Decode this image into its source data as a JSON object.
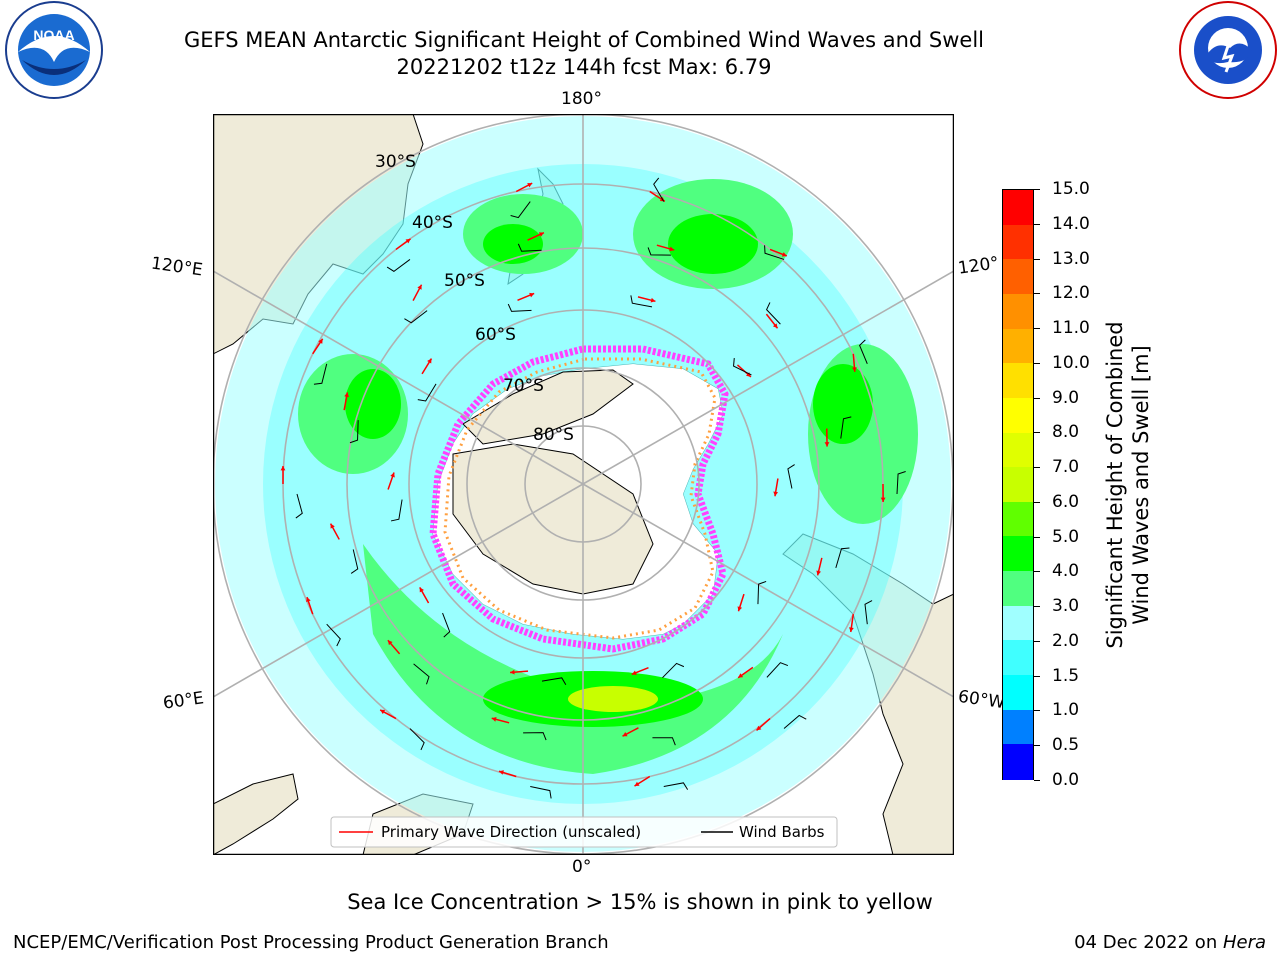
{
  "header": {
    "title_line1": "GEFS MEAN Antarctic Significant Height of Combined Wind Waves and Swell",
    "title_line2": "20221202 t12z 144h fcst   Max: 6.79"
  },
  "logos": {
    "left": {
      "icon": "noaa-logo",
      "text": "NOAA",
      "ring_text": "NATIONAL OCEANIC AND ATMOSPHERIC ADMINISTRATION · U.S. DEPARTMENT OF COMMERCE"
    },
    "right": {
      "icon": "nws-logo",
      "ring_text": "NATIONAL WEATHER SERVICE"
    }
  },
  "map": {
    "projection": "south-polar-stereographic",
    "longitude_labels": {
      "top": "180°",
      "bottom": "0°",
      "left_upper": "120°E",
      "left_lower": "60°E",
      "right_upper": "120°",
      "right_lower": "60°W"
    },
    "latitude_labels": [
      "30°S",
      "40°S",
      "50°S",
      "60°S",
      "70°S",
      "80°S"
    ],
    "colors": {
      "land": "#efebd9",
      "grid": "#b0b0b0",
      "ice_pink": "#ff40ff",
      "ice_orange": "#ffa040",
      "arrow": "#ff0000",
      "barb": "#000000"
    }
  },
  "legend": {
    "primary_wave": "Primary Wave Direction (unscaled)",
    "wind_barbs": "Wind Barbs"
  },
  "colorbar": {
    "label_line1": "Significant Height of Combined",
    "label_line2": "Wind Waves and Swell [m]",
    "ticks": [
      "15.0",
      "14.0",
      "13.0",
      "12.0",
      "11.0",
      "10.0",
      "9.0",
      "8.0",
      "7.0",
      "6.0",
      "5.0",
      "4.0",
      "3.0",
      "2.0",
      "1.5",
      "1.0",
      "0.5",
      "0.0"
    ],
    "bands": [
      {
        "from": "0.0",
        "to": "0.5",
        "color": "#0000ff"
      },
      {
        "from": "0.5",
        "to": "1.0",
        "color": "#0080ff"
      },
      {
        "from": "1.0",
        "to": "1.5",
        "color": "#00ffff"
      },
      {
        "from": "1.5",
        "to": "2.0",
        "color": "#40ffff"
      },
      {
        "from": "2.0",
        "to": "3.0",
        "color": "#a0ffff"
      },
      {
        "from": "3.0",
        "to": "4.0",
        "color": "#50ff80"
      },
      {
        "from": "4.0",
        "to": "5.0",
        "color": "#00ff00"
      },
      {
        "from": "5.0",
        "to": "6.0",
        "color": "#60ff00"
      },
      {
        "from": "6.0",
        "to": "7.0",
        "color": "#c8ff00"
      },
      {
        "from": "7.0",
        "to": "8.0",
        "color": "#e0ff00"
      },
      {
        "from": "8.0",
        "to": "9.0",
        "color": "#ffff00"
      },
      {
        "from": "9.0",
        "to": "10.0",
        "color": "#ffe000"
      },
      {
        "from": "10.0",
        "to": "11.0",
        "color": "#ffb000"
      },
      {
        "from": "11.0",
        "to": "12.0",
        "color": "#ff9000"
      },
      {
        "from": "12.0",
        "to": "13.0",
        "color": "#ff6000"
      },
      {
        "from": "13.0",
        "to": "14.0",
        "color": "#ff3000"
      },
      {
        "from": "14.0",
        "to": "15.0",
        "color": "#ff0000"
      }
    ]
  },
  "notes": {
    "sea_ice": "Sea Ice Concentration > 15% is shown in pink to yellow"
  },
  "footer": {
    "left": "NCEP/EMC/Verification Post Processing Product Generation Branch",
    "right_prefix": "04 Dec 2022 on ",
    "right_machine": "Hera"
  }
}
